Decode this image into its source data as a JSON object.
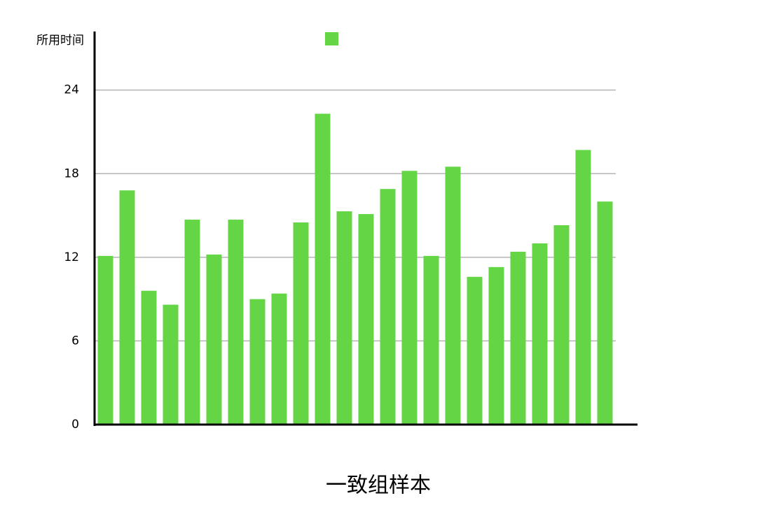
{
  "chart_data": {
    "type": "bar",
    "y_label": "所用时间",
    "x_label": "一致组样本",
    "categories": [
      null,
      null,
      null,
      null,
      null,
      null,
      null,
      null,
      null,
      null,
      null,
      null,
      null,
      null,
      null,
      null,
      null,
      null,
      null,
      null,
      null,
      null,
      null,
      null
    ],
    "values": [
      12.1,
      16.8,
      9.6,
      8.6,
      14.7,
      12.2,
      14.7,
      9.0,
      9.4,
      14.5,
      22.3,
      15.3,
      15.1,
      16.9,
      18.2,
      12.1,
      18.5,
      10.6,
      11.3,
      12.4,
      13.0,
      14.3,
      19.7,
      16.0
    ],
    "color": "#64d645",
    "ylim": [
      0,
      28.2
    ],
    "yticks": [
      0,
      6,
      12,
      18,
      24
    ],
    "grid": true,
    "legend": "top"
  }
}
